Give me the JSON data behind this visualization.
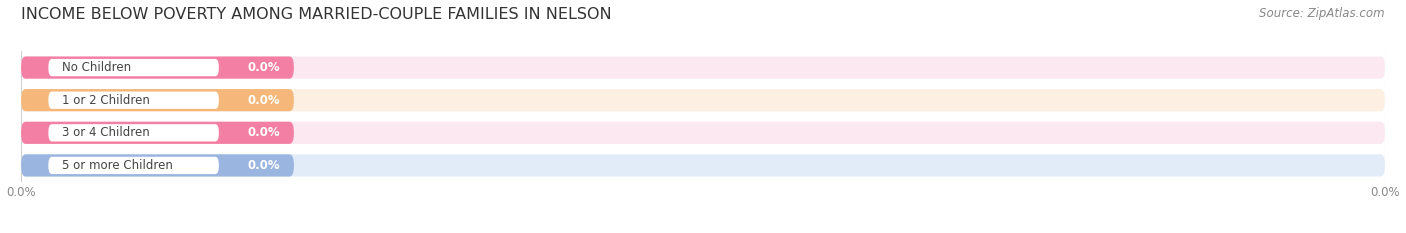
{
  "title": "INCOME BELOW POVERTY AMONG MARRIED-COUPLE FAMILIES IN NELSON",
  "source": "Source: ZipAtlas.com",
  "categories": [
    "No Children",
    "1 or 2 Children",
    "3 or 4 Children",
    "5 or more Children"
  ],
  "values": [
    0.0,
    0.0,
    0.0,
    0.0
  ],
  "bar_colors": [
    "#f47fa4",
    "#f5b87a",
    "#f47fa4",
    "#9ab5e0"
  ],
  "bar_bg_colors": [
    "#fbe8f0",
    "#fdf0e2",
    "#fbe8f0",
    "#e2ecf8"
  ],
  "dot_colors": [
    "#f47fa4",
    "#f5b87a",
    "#f47fa4",
    "#9ab5e0"
  ],
  "title_fontsize": 11.5,
  "source_fontsize": 8.5,
  "label_fontsize": 8.5,
  "value_fontsize": 8.5,
  "tick_fontsize": 8.5,
  "background_color": "#ffffff",
  "grid_color": "#d0d0d0",
  "tick_color": "#888888",
  "label_color": "#444444",
  "value_color": "#ffffff"
}
